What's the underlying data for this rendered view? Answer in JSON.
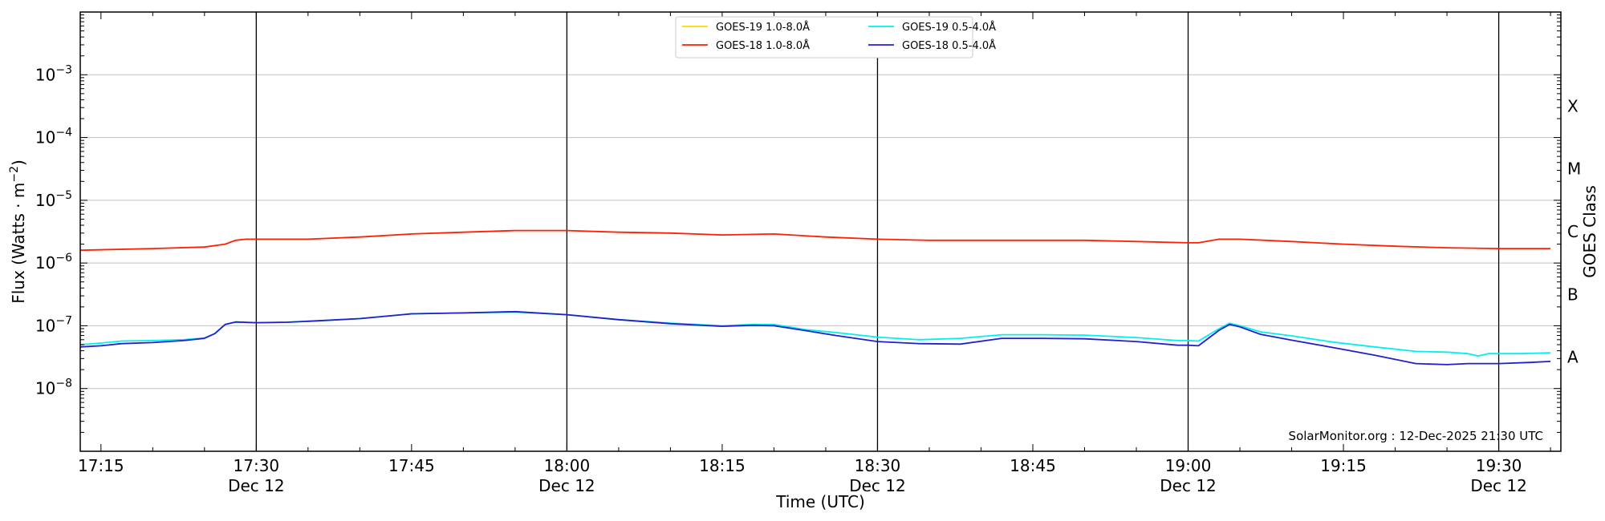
{
  "chart_data": {
    "type": "line",
    "xlabel": "Time (UTC)",
    "ylabel": "Flux (Watts · m⁻²)",
    "right_ylabel": "GOES Class",
    "credit": "SolarMonitor.org : 12-Dec-2025 21:30 UTC",
    "y_scale": "log",
    "ylim": [
      1e-09,
      0.01
    ],
    "xlim": [
      "17:13",
      "19:36"
    ],
    "grid": "horizontal",
    "legend_position": "top-center",
    "y_ticks": [
      {
        "value": 1e-08,
        "base": "10",
        "exp": "−8"
      },
      {
        "value": 1e-07,
        "base": "10",
        "exp": "−7"
      },
      {
        "value": 1e-06,
        "base": "10",
        "exp": "−6"
      },
      {
        "value": 1e-05,
        "base": "10",
        "exp": "−5"
      },
      {
        "value": 0.0001,
        "base": "10",
        "exp": "−4"
      },
      {
        "value": 0.001,
        "base": "10",
        "exp": "−3"
      }
    ],
    "x_ticks": [
      {
        "time": "17:15",
        "label": "17:15",
        "sublabel": ""
      },
      {
        "time": "17:30",
        "label": "17:30",
        "sublabel": "Dec 12"
      },
      {
        "time": "17:45",
        "label": "17:45",
        "sublabel": ""
      },
      {
        "time": "18:00",
        "label": "18:00",
        "sublabel": "Dec 12"
      },
      {
        "time": "18:15",
        "label": "18:15",
        "sublabel": ""
      },
      {
        "time": "18:30",
        "label": "18:30",
        "sublabel": "Dec 12"
      },
      {
        "time": "18:45",
        "label": "18:45",
        "sublabel": ""
      },
      {
        "time": "19:00",
        "label": "19:00",
        "sublabel": "Dec 12"
      },
      {
        "time": "19:15",
        "label": "19:15",
        "sublabel": ""
      },
      {
        "time": "19:30",
        "label": "19:30",
        "sublabel": "Dec 12"
      }
    ],
    "vlines": [
      "17:30",
      "18:00",
      "18:30",
      "19:00",
      "19:30"
    ],
    "goes_classes": [
      {
        "label": "A",
        "value": 3.16e-08
      },
      {
        "label": "B",
        "value": 3.16e-07
      },
      {
        "label": "C",
        "value": 3.16e-06
      },
      {
        "label": "M",
        "value": 3.16e-05
      },
      {
        "label": "X",
        "value": 0.000316
      }
    ],
    "series": [
      {
        "name": "GOES-19 1.0-8.0Å",
        "color": "#ffd700",
        "points": []
      },
      {
        "name": "GOES-18 1.0-8.0Å",
        "color": "#ff2000",
        "points": [
          [
            "17:13",
            1.6e-06
          ],
          [
            "17:20",
            1.7e-06
          ],
          [
            "17:25",
            1.8e-06
          ],
          [
            "17:27",
            2e-06
          ],
          [
            "17:28",
            2.3e-06
          ],
          [
            "17:29",
            2.4e-06
          ],
          [
            "17:30",
            2.4e-06
          ],
          [
            "17:35",
            2.4e-06
          ],
          [
            "17:40",
            2.6e-06
          ],
          [
            "17:45",
            2.9e-06
          ],
          [
            "17:50",
            3.1e-06
          ],
          [
            "17:55",
            3.3e-06
          ],
          [
            "18:00",
            3.3e-06
          ],
          [
            "18:05",
            3.1e-06
          ],
          [
            "18:10",
            3e-06
          ],
          [
            "18:15",
            2.8e-06
          ],
          [
            "18:20",
            2.9e-06
          ],
          [
            "18:25",
            2.6e-06
          ],
          [
            "18:30",
            2.4e-06
          ],
          [
            "18:35",
            2.3e-06
          ],
          [
            "18:40",
            2.3e-06
          ],
          [
            "18:45",
            2.3e-06
          ],
          [
            "18:50",
            2.3e-06
          ],
          [
            "18:55",
            2.2e-06
          ],
          [
            "19:00",
            2.1e-06
          ],
          [
            "19:01",
            2.1e-06
          ],
          [
            "19:03",
            2.4e-06
          ],
          [
            "19:05",
            2.4e-06
          ],
          [
            "19:10",
            2.2e-06
          ],
          [
            "19:15",
            2e-06
          ],
          [
            "19:20",
            1.85e-06
          ],
          [
            "19:25",
            1.75e-06
          ],
          [
            "19:30",
            1.7e-06
          ],
          [
            "19:35",
            1.7e-06
          ]
        ]
      },
      {
        "name": "GOES-19 0.5-4.0Å",
        "color": "#00f0f0",
        "points": [
          [
            "17:13",
            5e-08
          ],
          [
            "17:15",
            5.3e-08
          ],
          [
            "17:17",
            5.7e-08
          ],
          [
            "17:20",
            5.8e-08
          ],
          [
            "17:23",
            6e-08
          ],
          [
            "17:25",
            6.4e-08
          ],
          [
            "17:26",
            7.5e-08
          ],
          [
            "17:27",
            1.05e-07
          ],
          [
            "17:28",
            1.15e-07
          ],
          [
            "17:30",
            1.12e-07
          ],
          [
            "17:33",
            1.14e-07
          ],
          [
            "17:36",
            1.2e-07
          ],
          [
            "17:40",
            1.3e-07
          ],
          [
            "17:45",
            1.55e-07
          ],
          [
            "17:50",
            1.6e-07
          ],
          [
            "17:55",
            1.65e-07
          ],
          [
            "18:00",
            1.5e-07
          ],
          [
            "18:05",
            1.25e-07
          ],
          [
            "18:10",
            1.1e-07
          ],
          [
            "18:15",
            1e-07
          ],
          [
            "18:18",
            1.05e-07
          ],
          [
            "18:20",
            1.05e-07
          ],
          [
            "18:23",
            8.7e-08
          ],
          [
            "18:26",
            7.8e-08
          ],
          [
            "18:30",
            6.6e-08
          ],
          [
            "18:34",
            6e-08
          ],
          [
            "18:38",
            6.3e-08
          ],
          [
            "18:42",
            7.2e-08
          ],
          [
            "18:46",
            7.2e-08
          ],
          [
            "18:50",
            7.1e-08
          ],
          [
            "18:55",
            6.5e-08
          ],
          [
            "18:59",
            5.8e-08
          ],
          [
            "19:00",
            5.8e-08
          ],
          [
            "19:01",
            5.7e-08
          ],
          [
            "19:03",
            9e-08
          ],
          [
            "19:04",
            1.1e-07
          ],
          [
            "19:05",
            1e-07
          ],
          [
            "19:07",
            8e-08
          ],
          [
            "19:10",
            6.9e-08
          ],
          [
            "19:14",
            5.5e-08
          ],
          [
            "19:18",
            4.6e-08
          ],
          [
            "19:22",
            3.9e-08
          ],
          [
            "19:25",
            3.8e-08
          ],
          [
            "19:27",
            3.6e-08
          ],
          [
            "19:28",
            3.3e-08
          ],
          [
            "19:29",
            3.6e-08
          ],
          [
            "19:32",
            3.6e-08
          ],
          [
            "19:35",
            3.7e-08
          ]
        ]
      },
      {
        "name": "GOES-18 0.5-4.0Å",
        "color": "#2020d0",
        "points": [
          [
            "17:13",
            4.6e-08
          ],
          [
            "17:15",
            4.8e-08
          ],
          [
            "17:17",
            5.2e-08
          ],
          [
            "17:20",
            5.4e-08
          ],
          [
            "17:23",
            5.8e-08
          ],
          [
            "17:25",
            6.3e-08
          ],
          [
            "17:26",
            7.5e-08
          ],
          [
            "17:27",
            1.05e-07
          ],
          [
            "17:28",
            1.15e-07
          ],
          [
            "17:30",
            1.12e-07
          ],
          [
            "17:33",
            1.14e-07
          ],
          [
            "17:36",
            1.2e-07
          ],
          [
            "17:40",
            1.3e-07
          ],
          [
            "17:45",
            1.55e-07
          ],
          [
            "17:50",
            1.6e-07
          ],
          [
            "17:55",
            1.68e-07
          ],
          [
            "18:00",
            1.5e-07
          ],
          [
            "18:05",
            1.25e-07
          ],
          [
            "18:10",
            1.08e-07
          ],
          [
            "18:15",
            9.8e-08
          ],
          [
            "18:18",
            1.02e-07
          ],
          [
            "18:20",
            1e-07
          ],
          [
            "18:23",
            8.4e-08
          ],
          [
            "18:26",
            7e-08
          ],
          [
            "18:30",
            5.6e-08
          ],
          [
            "18:34",
            5.2e-08
          ],
          [
            "18:38",
            5.1e-08
          ],
          [
            "18:42",
            6.3e-08
          ],
          [
            "18:46",
            6.3e-08
          ],
          [
            "18:50",
            6.2e-08
          ],
          [
            "18:55",
            5.6e-08
          ],
          [
            "18:59",
            4.9e-08
          ],
          [
            "19:00",
            4.9e-08
          ],
          [
            "19:01",
            4.8e-08
          ],
          [
            "19:03",
            8.5e-08
          ],
          [
            "19:04",
            1.05e-07
          ],
          [
            "19:05",
            9.6e-08
          ],
          [
            "19:07",
            7.3e-08
          ],
          [
            "19:10",
            5.9e-08
          ],
          [
            "19:14",
            4.5e-08
          ],
          [
            "19:18",
            3.4e-08
          ],
          [
            "19:22",
            2.5e-08
          ],
          [
            "19:25",
            2.4e-08
          ],
          [
            "19:27",
            2.5e-08
          ],
          [
            "19:30",
            2.5e-08
          ],
          [
            "19:33",
            2.6e-08
          ],
          [
            "19:35",
            2.7e-08
          ]
        ]
      }
    ]
  }
}
